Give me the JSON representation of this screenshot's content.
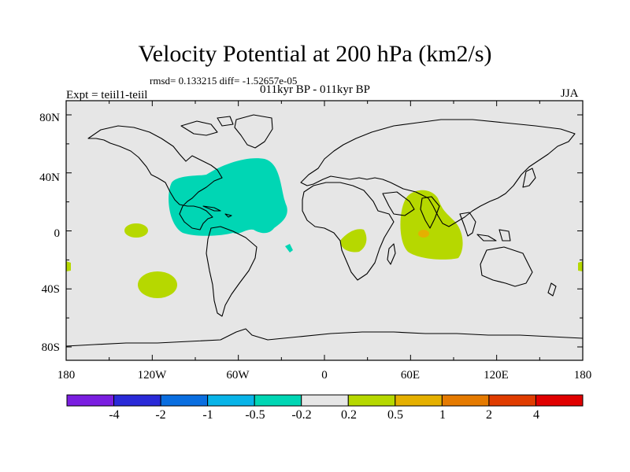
{
  "title": "Velocity Potential at 200 hPa (km2/s)",
  "stats": "rmsd= 0.133215 diff= -1.52657e-05",
  "experiment": "Expt = teiil1-teiil",
  "period": "011kyr BP - 011kyr BP",
  "season": "JJA",
  "map": {
    "background_color": "#e6e6e6",
    "lat_ticks": [
      "80N",
      "40N",
      "0",
      "40S",
      "80S"
    ],
    "lon_ticks": [
      "180",
      "120W",
      "60W",
      "0",
      "60E",
      "120E",
      "180"
    ],
    "anomalies": [
      {
        "name": "North Atlantic / Caribbean",
        "level": "-0.5 to -0.2",
        "color": "#00d6b4"
      },
      {
        "name": "Indian Ocean",
        "level": "0.2 to 0.5",
        "color": "#b6d800"
      },
      {
        "name": "Indian Ocean core",
        "level": "0.5 to 1",
        "color": "#e5b000"
      },
      {
        "name": "South Atlantic / Africa",
        "level": "0.2 to 0.5",
        "color": "#b6d800"
      },
      {
        "name": "South Pacific",
        "level": "0.2 to 0.5",
        "color": "#b6d800"
      },
      {
        "name": "East Pacific",
        "level": "0.2 to 0.5",
        "color": "#b6d800"
      }
    ]
  },
  "colorbar": {
    "colors": [
      "#7a1ee0",
      "#2a2ad8",
      "#0a6ee0",
      "#08b4e8",
      "#00d6b4",
      "#e6e6e6",
      "#b6d800",
      "#e5b000",
      "#e57a00",
      "#e03c00",
      "#e00000"
    ],
    "labels": [
      "-4",
      "-2",
      "-1",
      "-0.5",
      "-0.2",
      "0.2",
      "0.5",
      "1",
      "2",
      "4"
    ]
  }
}
